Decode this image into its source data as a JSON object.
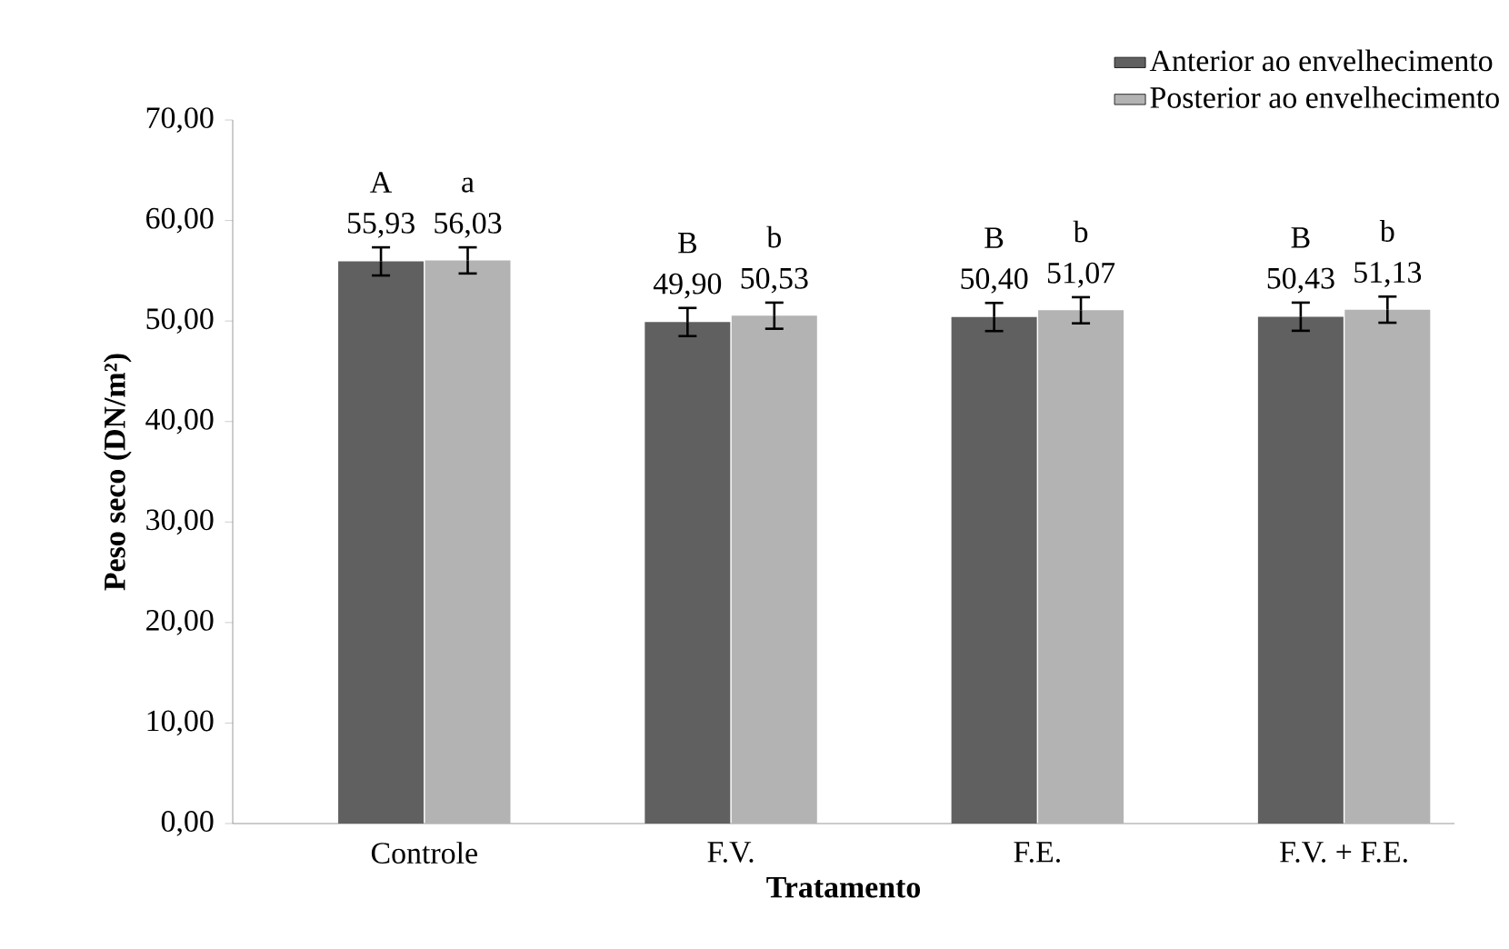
{
  "chart_data": {
    "type": "bar",
    "categories": [
      "Controle",
      "F.V.",
      "F.E.",
      "F.V. + F.E."
    ],
    "xlabel": "Tratamento",
    "ylabel": "Peso seco (DN/m²)",
    "series": [
      {
        "name": "Anterior ao envelhecimento",
        "color": "#606060",
        "values": [
          55.93,
          49.9,
          50.4,
          50.43
        ],
        "errors": [
          1.4,
          1.4,
          1.4,
          1.4
        ],
        "value_labels": [
          "55,93",
          "49,90",
          "50,40",
          "50,43"
        ]
      },
      {
        "name": "Posterior ao envelhecimento",
        "color": "#b3b3b3",
        "values": [
          56.03,
          50.53,
          51.07,
          51.13
        ],
        "errors": [
          1.3,
          1.3,
          1.3,
          1.3
        ],
        "value_labels": [
          "56,03",
          "50,53",
          "51,07",
          "51,13"
        ]
      }
    ],
    "annotations": [
      "A",
      "a",
      "B",
      "b",
      "B",
      "b",
      "B",
      "b"
    ],
    "ylim": [
      0,
      70
    ],
    "yticks": [
      {
        "value": 0,
        "label": "0,00"
      },
      {
        "value": 10,
        "label": "10,00"
      },
      {
        "value": 20,
        "label": "20,00"
      },
      {
        "value": 30,
        "label": "30,00"
      },
      {
        "value": 40,
        "label": "40,00"
      },
      {
        "value": 50,
        "label": "50,00"
      },
      {
        "value": 60,
        "label": "60,00"
      },
      {
        "value": 70,
        "label": "70,00"
      }
    ],
    "grid": false,
    "legend": "top right"
  }
}
